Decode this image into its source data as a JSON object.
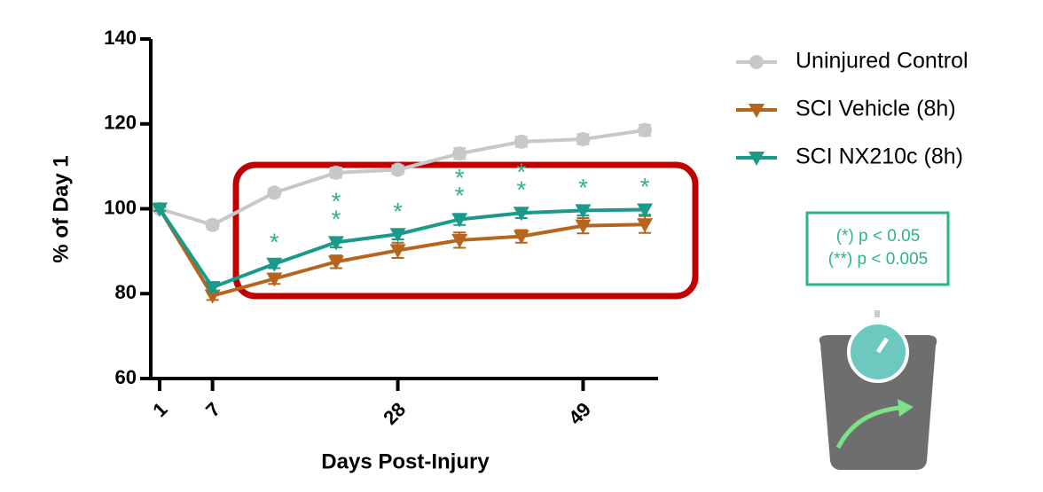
{
  "chart_data": {
    "type": "line",
    "y_label": "% of Day 1",
    "x_label": "Days Post-Injury",
    "x": [
      1,
      7,
      14,
      21,
      28,
      35,
      42,
      49,
      56
    ],
    "xlim": [
      0,
      57.5
    ],
    "xticks": [
      1,
      7,
      28,
      49
    ],
    "ylim": [
      60,
      140
    ],
    "yticks": [
      60,
      80,
      100,
      120,
      140
    ],
    "series": [
      {
        "name": "Uninjured Control",
        "color": "#c8c8c8",
        "marker": "circle",
        "values": [
          100,
          96.2,
          103.8,
          108.5,
          109.2,
          113,
          115.8,
          116.4,
          118.5
        ],
        "errors": [
          0.5,
          1,
          1,
          1.2,
          1,
          1.3,
          1.2,
          1.2,
          1.3
        ]
      },
      {
        "name": "SCI Vehicle (8h)",
        "color": "#b5651d",
        "marker": "triangle",
        "values": [
          100,
          79.5,
          83.5,
          87.5,
          90.2,
          92.6,
          93.5,
          96,
          96.3
        ],
        "errors": [
          0.5,
          1,
          1.2,
          1.5,
          1.8,
          1.8,
          1.5,
          1.8,
          2
        ]
      },
      {
        "name": "SCI NX210c (8h)",
        "color": "#1a9a8a",
        "marker": "triangle",
        "values": [
          100,
          81.5,
          87,
          92.1,
          94,
          97.5,
          99,
          99.6,
          99.8
        ],
        "errors": [
          0.5,
          1,
          1,
          1.2,
          1.2,
          1.3,
          1.2,
          1.2,
          1.2
        ]
      }
    ],
    "significance": [
      null,
      null,
      "*",
      "**",
      "*",
      "**",
      "**",
      "*",
      "*"
    ],
    "significance_color": "#2db38a",
    "significance_legend": [
      "(*) p < 0.05",
      "(**) p < 0.005"
    ]
  }
}
